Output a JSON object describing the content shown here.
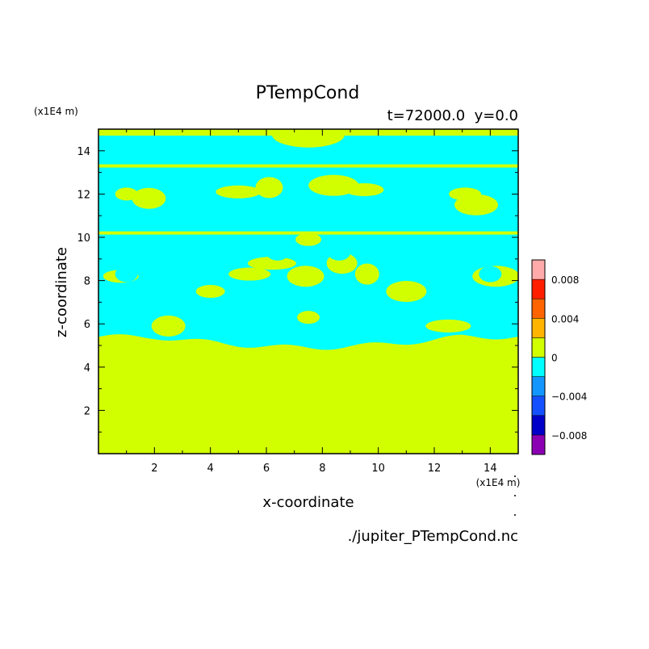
{
  "chart_data": {
    "type": "heatmap",
    "title": "PTempCond",
    "subtitle": "t=72000.0  y=0.0",
    "xlabel": "x-coordinate",
    "ylabel": "z-coordinate",
    "x_unit": "(x1E4 m)",
    "y_unit": "(x1E4 m)",
    "source": "./jupiter_PTempCond.nc",
    "xlim": [
      0,
      15
    ],
    "ylim": [
      0,
      15
    ],
    "x_ticks": [
      "2",
      "4",
      "6",
      "8",
      "10",
      "12",
      "14"
    ],
    "y_ticks": [
      "2",
      "4",
      "6",
      "8",
      "10",
      "12",
      "14"
    ],
    "colorbar": {
      "range": [
        -0.01,
        0.01
      ],
      "levels": [
        {
          "from": -0.01,
          "to": -0.008,
          "color": "#8c00b4"
        },
        {
          "from": -0.008,
          "to": -0.006,
          "color": "#0000c8"
        },
        {
          "from": -0.006,
          "to": -0.004,
          "color": "#1450ff"
        },
        {
          "from": -0.004,
          "to": -0.002,
          "color": "#1496ff"
        },
        {
          "from": -0.002,
          "to": 0.0,
          "color": "#00ffff"
        },
        {
          "from": 0.0,
          "to": 0.002,
          "color": "#d2ff00"
        },
        {
          "from": 0.002,
          "to": 0.004,
          "color": "#ffb400"
        },
        {
          "from": 0.004,
          "to": 0.006,
          "color": "#ff6400"
        },
        {
          "from": 0.006,
          "to": 0.008,
          "color": "#ff1e00"
        },
        {
          "from": 0.008,
          "to": 0.01,
          "color": "#ffaaaa"
        }
      ],
      "tick_labels": [
        {
          "value": 0.008,
          "label": "0.008"
        },
        {
          "value": 0.004,
          "label": "0.004"
        },
        {
          "value": 0.0,
          "label": "0"
        },
        {
          "value": -0.004,
          "label": "−0.004"
        },
        {
          "value": -0.008,
          "label": "−0.008"
        }
      ]
    },
    "field": {
      "positive_color": "#d2ff00",
      "negative_color": "#00ffff",
      "cyan_layer_z": [
        5.1,
        14.7
      ],
      "top_positive_band_z": [
        14.7,
        15.0
      ],
      "top_center_positive_x": [
        6.2,
        8.8
      ],
      "positive_blobs_xz": [
        [
          1.0,
          12.0
        ],
        [
          1.8,
          11.8
        ],
        [
          5.0,
          12.1
        ],
        [
          6.1,
          12.3
        ],
        [
          9.5,
          12.2
        ],
        [
          8.4,
          12.4
        ],
        [
          13.1,
          12.0
        ],
        [
          13.5,
          11.5
        ],
        [
          7.5,
          9.9
        ],
        [
          7.4,
          8.2
        ],
        [
          6.2,
          8.8
        ],
        [
          8.7,
          8.8
        ],
        [
          5.4,
          8.3
        ],
        [
          9.6,
          8.3
        ],
        [
          0.8,
          8.2
        ],
        [
          14.2,
          8.2
        ],
        [
          4.0,
          7.5
        ],
        [
          11.0,
          7.5
        ],
        [
          7.5,
          6.3
        ],
        [
          2.5,
          5.9
        ],
        [
          12.5,
          5.9
        ]
      ]
    }
  }
}
